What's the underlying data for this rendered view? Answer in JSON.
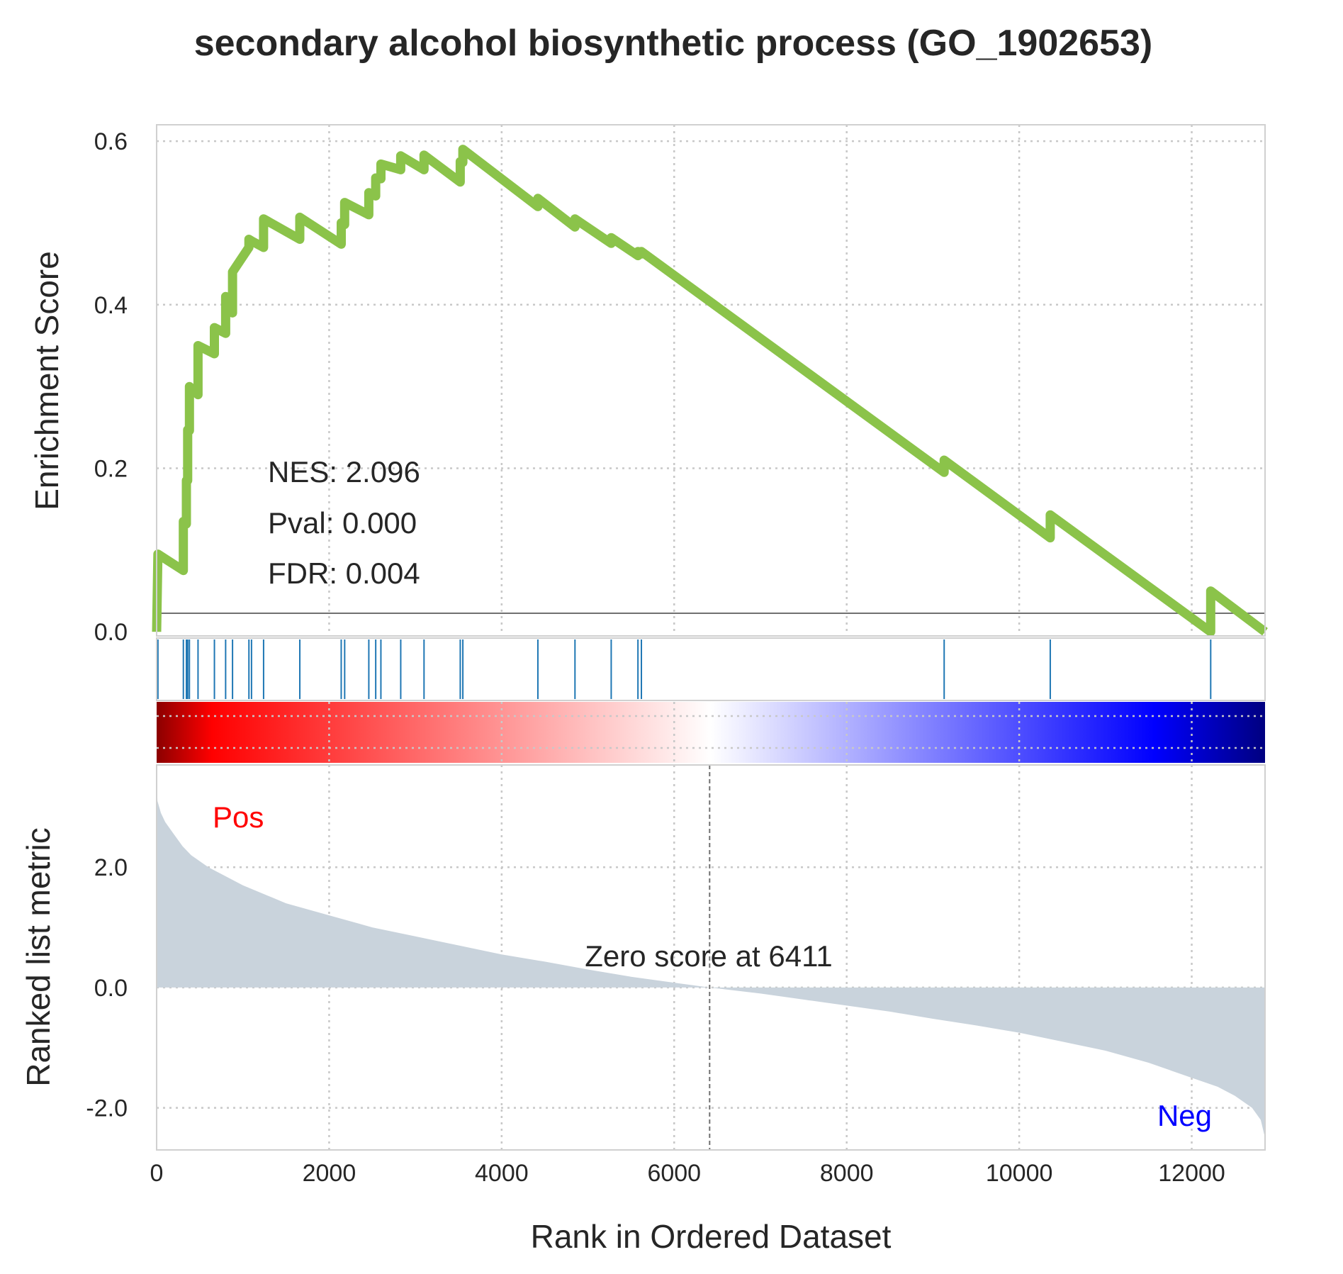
{
  "chart_data": {
    "type": "line",
    "title": "secondary alcohol biosynthetic process (GO_1902653)",
    "xlabel": "Rank in Ordered Dataset",
    "xlim": [
      0,
      12850
    ],
    "xticks": [
      0,
      2000,
      4000,
      6000,
      8000,
      10000,
      12000
    ],
    "grid": true,
    "enrichment": {
      "ylabel": "Enrichment Score",
      "ylim": [
        -0.005,
        0.62
      ],
      "yticks": [
        "0.0",
        "0.2",
        "0.4",
        "0.6"
      ],
      "color": "#8bc34a",
      "hits": [
        15,
        310,
        345,
        360,
        380,
        480,
        670,
        800,
        880,
        1070,
        1100,
        1240,
        1660,
        2140,
        2180,
        2460,
        2540,
        2600,
        2830,
        3100,
        3520,
        3550,
        4420,
        4850,
        5270,
        5580,
        5620,
        9130,
        10360,
        12220
      ],
      "curve_x": [
        0,
        15,
        310,
        310,
        345,
        345,
        360,
        360,
        380,
        380,
        480,
        480,
        670,
        670,
        800,
        800,
        880,
        880,
        1070,
        1070,
        1100,
        1100,
        1240,
        1240,
        1660,
        1660,
        2140,
        2140,
        2180,
        2180,
        2460,
        2460,
        2540,
        2540,
        2600,
        2600,
        2830,
        2830,
        3100,
        3100,
        3520,
        3520,
        3550,
        3550,
        4420,
        4420,
        4850,
        4850,
        5270,
        5270,
        5580,
        5580,
        5620,
        5620,
        9130,
        9130,
        10360,
        10360,
        12220,
        12220,
        12850
      ],
      "curve_y": [
        0.0,
        0.095,
        0.075,
        0.135,
        0.132,
        0.185,
        0.185,
        0.247,
        0.246,
        0.3,
        0.29,
        0.35,
        0.34,
        0.372,
        0.365,
        0.41,
        0.39,
        0.44,
        0.47,
        0.48,
        0.478,
        0.478,
        0.47,
        0.505,
        0.48,
        0.507,
        0.474,
        0.5,
        0.498,
        0.525,
        0.51,
        0.537,
        0.533,
        0.555,
        0.554,
        0.572,
        0.565,
        0.582,
        0.565,
        0.583,
        0.55,
        0.575,
        0.574,
        0.59,
        0.52,
        0.53,
        0.495,
        0.505,
        0.475,
        0.482,
        0.46,
        0.465,
        0.462,
        0.465,
        0.195,
        0.21,
        0.115,
        0.143,
        0.0,
        0.05,
        0.0
      ],
      "annotations": [
        "NES: 2.096",
        "Pval: 0.000",
        "FDR: 0.004"
      ]
    },
    "heatmap": {
      "colors": [
        "#8b0000",
        "#ff0000",
        "#ffffff",
        "#0000ff",
        "#000080"
      ]
    },
    "ranked_metric": {
      "ylabel": "Ranked list metric",
      "ylim": [
        -2.7,
        3.7
      ],
      "yticks": [
        "2.0",
        "0.0",
        "-2.0"
      ],
      "fill_color": "#c9d3dc",
      "x": [
        0,
        10,
        50,
        100,
        200,
        300,
        400,
        600,
        800,
        1000,
        1500,
        2000,
        2500,
        3000,
        3500,
        4000,
        4500,
        5000,
        5500,
        6000,
        6411,
        7000,
        7500,
        8000,
        8500,
        9000,
        9500,
        10000,
        10500,
        11000,
        11500,
        12000,
        12300,
        12500,
        12700,
        12800,
        12850
      ],
      "y": [
        3.5,
        3.1,
        2.9,
        2.75,
        2.55,
        2.35,
        2.2,
        2.0,
        1.85,
        1.7,
        1.4,
        1.2,
        1.0,
        0.85,
        0.7,
        0.55,
        0.43,
        0.3,
        0.18,
        0.08,
        0.0,
        -0.1,
        -0.2,
        -0.3,
        -0.4,
        -0.52,
        -0.63,
        -0.75,
        -0.9,
        -1.05,
        -1.25,
        -1.5,
        -1.65,
        -1.8,
        -2.0,
        -2.2,
        -2.5
      ],
      "zero_cross": 6411,
      "zero_label": "Zero score at 6411",
      "pos_label": "Pos",
      "neg_label": "Neg",
      "pos_color": "#ff0000",
      "neg_color": "#0000ff"
    }
  }
}
